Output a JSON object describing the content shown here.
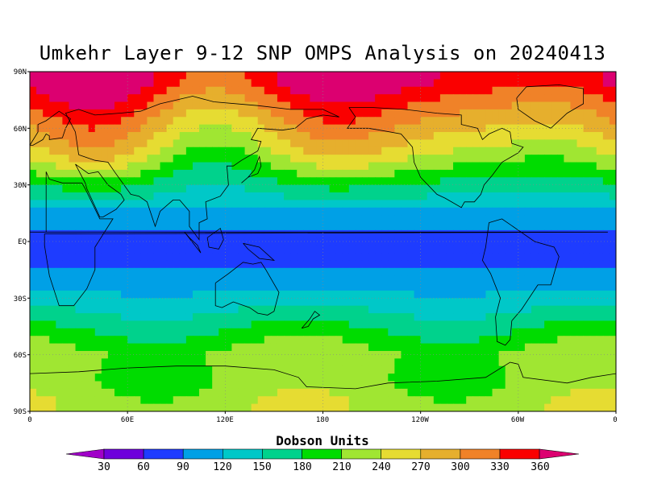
{
  "title": "Umkehr Layer 9-12 SNP OMPS Analysis on 20240413",
  "colorbar": {
    "title": "Dobson Units",
    "levels": [
      "30",
      "60",
      "90",
      "120",
      "150",
      "180",
      "210",
      "240",
      "270",
      "300",
      "330",
      "360"
    ],
    "colors": [
      "#a000c8",
      "#6e00dc",
      "#1e3cff",
      "#00a0e6",
      "#00c8c8",
      "#00d28c",
      "#00dc00",
      "#a0e632",
      "#e6dc32",
      "#e6af2d",
      "#f08228",
      "#fa0000",
      "#dc0070"
    ]
  },
  "y_axis": {
    "labels": [
      "90N",
      "60N",
      "30N",
      "EQ",
      "30S",
      "60S",
      "90S"
    ]
  },
  "x_axis": {
    "labels": [
      "0",
      "60E",
      "120E",
      "180",
      "120W",
      "60W",
      "0"
    ]
  },
  "chart_data": {
    "type": "heatmap",
    "title": "Umkehr Layer 9-12 SNP OMPS Analysis on 20240413",
    "units": "Dobson Units",
    "lon_range": [
      0,
      360
    ],
    "lat_range": [
      -90,
      90
    ],
    "contour_levels": [
      30,
      60,
      90,
      120,
      150,
      180,
      210,
      240,
      270,
      300,
      330,
      360
    ],
    "zonal_bands": [
      {
        "lat": 85,
        "value": 365
      },
      {
        "lat": 78,
        "value": 340
      },
      {
        "lat": 70,
        "value": 315
      },
      {
        "lat": 60,
        "value": 285
      },
      {
        "lat": 50,
        "value": 255
      },
      {
        "lat": 42,
        "value": 225
      },
      {
        "lat": 35,
        "value": 195
      },
      {
        "lat": 28,
        "value": 165
      },
      {
        "lat": 20,
        "value": 135
      },
      {
        "lat": 12,
        "value": 100
      },
      {
        "lat": 0,
        "value": 75
      },
      {
        "lat": -10,
        "value": 75
      },
      {
        "lat": -20,
        "value": 100
      },
      {
        "lat": -30,
        "value": 130
      },
      {
        "lat": -40,
        "value": 160
      },
      {
        "lat": -50,
        "value": 190
      },
      {
        "lat": -60,
        "value": 220
      },
      {
        "lat": -75,
        "value": 215
      },
      {
        "lat": -85,
        "value": 230
      }
    ]
  }
}
